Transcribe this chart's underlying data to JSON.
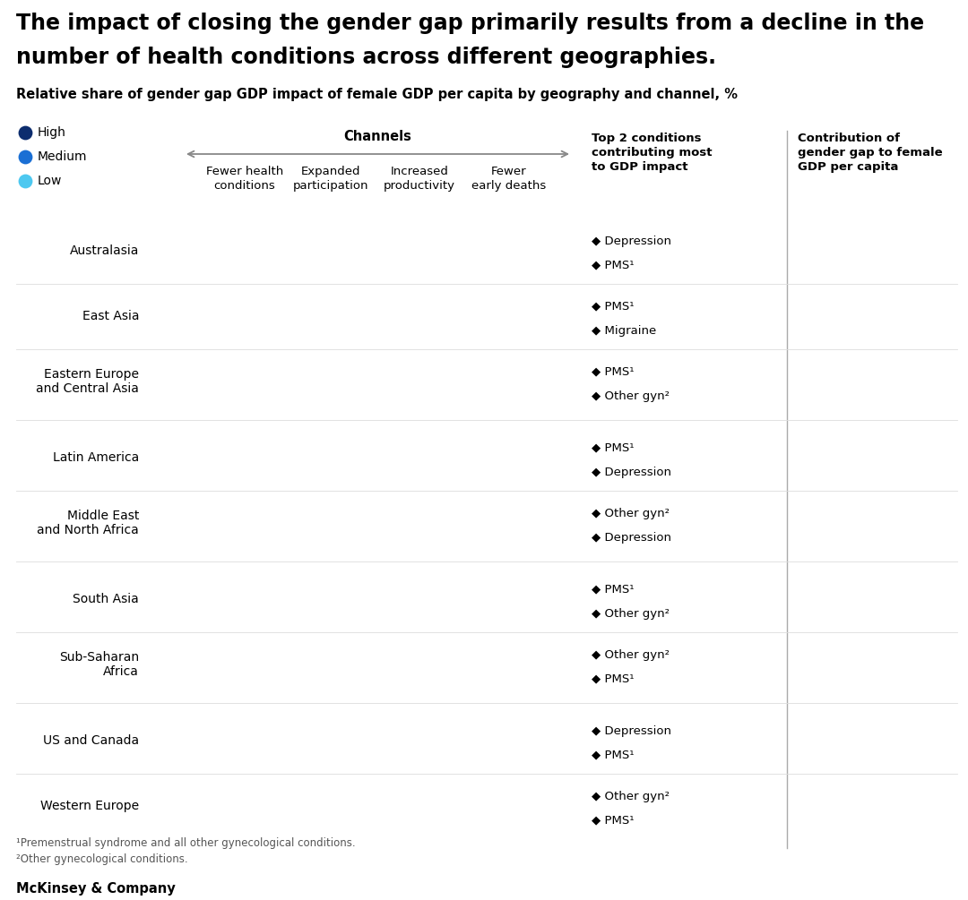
{
  "title_line1": "The impact of closing the gender gap primarily results from a decline in the",
  "title_line2": "number of health conditions across different geographies.",
  "subtitle": "Relative share of gender gap GDP impact of female GDP per capita by geography and channel, %",
  "legend": [
    {
      "label": "High",
      "color": "#0d2d6e"
    },
    {
      "label": "Medium",
      "color": "#1a6fd4"
    },
    {
      "label": "Low",
      "color": "#4dc8f0"
    }
  ],
  "channel_label": "Channels",
  "channel_cols": [
    "Fewer health\nconditions",
    "Expanded\nparticipation",
    "Increased\nproductivity",
    "Fewer\nearly deaths"
  ],
  "right_col1_header": "Top 2 conditions\ncontributing most\nto GDP impact",
  "right_col2_header": "Contribution of\ngender gap to female\nGDP per capita",
  "geographies": [
    "Australasia",
    "East Asia",
    "Eastern Europe\nand Central Asia",
    "Latin America",
    "Middle East\nand North Africa",
    "South Asia",
    "Sub-Saharan\nAfrica",
    "US and Canada",
    "Western Europe"
  ],
  "conditions": [
    [
      "◆ Depression",
      "◆ PMS¹"
    ],
    [
      "◆ PMS¹",
      "◆ Migraine"
    ],
    [
      "◆ PMS¹",
      "◆ Other gyn²"
    ],
    [
      "◆ PMS¹",
      "◆ Depression"
    ],
    [
      "◆ Other gyn²",
      "◆ Depression"
    ],
    [
      "◆ PMS¹",
      "◆ Other gyn²"
    ],
    [
      "◆ Other gyn²",
      "◆ PMS¹"
    ],
    [
      "◆ Depression",
      "◆ PMS¹"
    ],
    [
      "◆ Other gyn²",
      "◆ PMS¹"
    ]
  ],
  "footnotes": [
    "¹Premenstrual syndrome and all other gynecological conditions.",
    "²Other gynecological conditions."
  ],
  "brand": "McKinsey & Company",
  "bg_color": "#ffffff",
  "sep_line_color": "#aaaaaa",
  "arrow_color": "#888888",
  "divider_color": "#dddddd"
}
